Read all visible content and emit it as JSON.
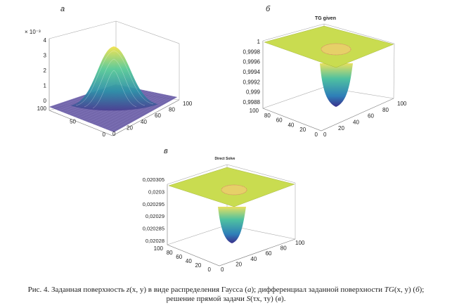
{
  "figure": {
    "panels": [
      {
        "letter": "а",
        "title": "",
        "exponent": "× 10⁻³",
        "z_ticks": [
          "4",
          "3",
          "2",
          "1",
          "0"
        ],
        "y_ticks": [
          "100",
          "50",
          "0"
        ],
        "x_ticks": [
          "0",
          "20",
          "40",
          "60",
          "80",
          "100"
        ]
      },
      {
        "letter": "б",
        "title": "TG given",
        "z_ticks": [
          "1",
          "0,9998",
          "0,9996",
          "0,9994",
          "0,9992",
          "0,999",
          "0,9988"
        ],
        "y_ticks": [
          "100",
          "80",
          "60",
          "40",
          "20",
          "0"
        ],
        "x_ticks": [
          "0",
          "20",
          "40",
          "60",
          "80",
          "100"
        ]
      },
      {
        "letter": "в",
        "title": "Direct Solve",
        "z_ticks": [
          "0,020305",
          "0,0203",
          "0,020295",
          "0,02029",
          "0,020285",
          "0,02028"
        ],
        "y_ticks": [
          "100",
          "80",
          "60",
          "40",
          "20",
          "0"
        ],
        "x_ticks": [
          "0",
          "20",
          "40",
          "60",
          "80",
          "100"
        ]
      }
    ],
    "caption": {
      "line1_a": "Рис. 4. Заданная поверхность ",
      "line1_b": "z",
      "line1_c": "(x, y)",
      "line1_d": " в виде распределения Гаусса (",
      "line1_e": "а",
      "line1_f": "); дифференциал заданной поверхности ",
      "line1_g": "TG",
      "line1_h": "(x, y)",
      "line1_i": " (",
      "line1_j": "б",
      "line1_k": ");",
      "line2_a": "решение прямой задачи ",
      "line2_b": "S",
      "line2_c": "(τx, τy)",
      "line2_d": " (",
      "line2_e": "в",
      "line2_f": ")."
    }
  }
}
